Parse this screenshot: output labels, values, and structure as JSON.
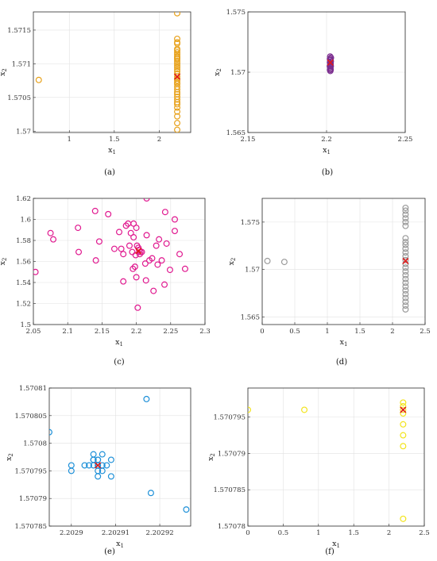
{
  "chart_data": [
    {
      "type": "scatter",
      "panel_label": "(a)",
      "xlabel": "x₁",
      "ylabel": "x₂",
      "xlim": [
        0.6,
        2.35
      ],
      "ylim": [
        1.56998,
        1.57177
      ],
      "xticks": [
        1,
        1.5,
        2
      ],
      "xtick_labels": [
        "1",
        "1.5",
        "2"
      ],
      "yticks": [
        1.57,
        1.5705,
        1.571,
        1.5715
      ],
      "ytick_labels": [
        "1.57",
        "1.5705",
        "1.571",
        "1.5715"
      ],
      "grid": true,
      "series": [
        {
          "color": "#e8a21c",
          "marker": "circle",
          "points": [
            [
              0.66,
              1.57076
            ],
            [
              2.2,
              1.57175
            ],
            [
              2.2,
              1.57137
            ],
            [
              2.2,
              1.57132
            ],
            [
              2.2,
              1.5713
            ],
            [
              2.2,
              1.57122
            ],
            [
              2.2,
              1.5712
            ],
            [
              2.2,
              1.57117
            ],
            [
              2.2,
              1.57114
            ],
            [
              2.2,
              1.57111
            ],
            [
              2.2,
              1.57109
            ],
            [
              2.2,
              1.57107
            ],
            [
              2.2,
              1.57104
            ],
            [
              2.2,
              1.57101
            ],
            [
              2.2,
              1.57098
            ],
            [
              2.2,
              1.57095
            ],
            [
              2.2,
              1.57092
            ],
            [
              2.2,
              1.57089
            ],
            [
              2.2,
              1.57085
            ],
            [
              2.2,
              1.57081
            ],
            [
              2.2,
              1.57078
            ],
            [
              2.2,
              1.57075
            ],
            [
              2.2,
              1.57072
            ],
            [
              2.2,
              1.5707
            ],
            [
              2.2,
              1.57066
            ],
            [
              2.2,
              1.57062
            ],
            [
              2.2,
              1.57058
            ],
            [
              2.2,
              1.57055
            ],
            [
              2.2,
              1.57051
            ],
            [
              2.2,
              1.57047
            ],
            [
              2.2,
              1.57043
            ],
            [
              2.2,
              1.5704
            ],
            [
              2.2,
              1.57035
            ],
            [
              2.2,
              1.57029
            ],
            [
              2.2,
              1.57022
            ],
            [
              2.2,
              1.57012
            ],
            [
              2.2,
              1.57002
            ]
          ]
        }
      ],
      "optimum": [
        2.2,
        1.57081
      ],
      "optimum_marker": "x",
      "optimum_color": "#e01a1a"
    },
    {
      "type": "scatter",
      "panel_label": "(b)",
      "xlabel": "x₁",
      "ylabel": "x₂",
      "xlim": [
        2.15,
        2.25
      ],
      "ylim": [
        1.565,
        1.575
      ],
      "xticks": [
        2.15,
        2.2,
        2.25
      ],
      "xtick_labels": [
        "2.15",
        "2.2",
        "2.25"
      ],
      "yticks": [
        1.565,
        1.57,
        1.575
      ],
      "ytick_labels": [
        "1.565",
        "1.57",
        "1.575"
      ],
      "grid": true,
      "series": [
        {
          "color": "#7b2d8f",
          "marker": "circle",
          "points": [
            [
              2.2028,
              1.5712
            ],
            [
              2.2025,
              1.5711
            ],
            [
              2.2023,
              1.571
            ],
            [
              2.2027,
              1.5709
            ],
            [
              2.2022,
              1.5708
            ],
            [
              2.2026,
              1.5707
            ],
            [
              2.2024,
              1.5706
            ],
            [
              2.2021,
              1.5705
            ],
            [
              2.2023,
              1.5704
            ],
            [
              2.2025,
              1.5703
            ],
            [
              2.2022,
              1.5702
            ],
            [
              2.2024,
              1.5701
            ],
            [
              2.2022,
              1.5711
            ],
            [
              2.2027,
              1.5705
            ],
            [
              2.2026,
              1.5702
            ],
            [
              2.2023,
              1.5713
            ]
          ]
        }
      ],
      "optimum": [
        2.2024,
        1.5708
      ],
      "optimum_marker": "x",
      "optimum_color": "#e01a1a"
    },
    {
      "type": "scatter",
      "panel_label": "(c)",
      "xlabel": "x₁",
      "ylabel": "x₂",
      "xlim": [
        2.05,
        2.3
      ],
      "ylim": [
        1.5,
        1.62
      ],
      "xticks": [
        2.05,
        2.1,
        2.15,
        2.2,
        2.25,
        2.3
      ],
      "xtick_labels": [
        "2.05",
        "2.1",
        "2.15",
        "2.2",
        "2.25",
        "2.3"
      ],
      "yticks": [
        1.5,
        1.52,
        1.54,
        1.56,
        1.58,
        1.6,
        1.62
      ],
      "ytick_labels": [
        "1.5",
        "1.52",
        "1.54",
        "1.56",
        "1.58",
        "1.6",
        "1.62"
      ],
      "grid": true,
      "series": [
        {
          "color": "#e0188f",
          "marker": "circle",
          "points": [
            [
              2.053,
              1.55
            ],
            [
              2.075,
              1.587
            ],
            [
              2.079,
              1.581
            ],
            [
              2.115,
              1.592
            ],
            [
              2.116,
              1.569
            ],
            [
              2.14,
              1.608
            ],
            [
              2.141,
              1.561
            ],
            [
              2.146,
              1.579
            ],
            [
              2.159,
              1.605
            ],
            [
              2.168,
              1.572
            ],
            [
              2.175,
              1.588
            ],
            [
              2.178,
              1.572
            ],
            [
              2.181,
              1.541
            ],
            [
              2.181,
              1.567
            ],
            [
              2.185,
              1.594
            ],
            [
              2.188,
              1.596
            ],
            [
              2.19,
              1.575
            ],
            [
              2.192,
              1.587
            ],
            [
              2.194,
              1.569
            ],
            [
              2.195,
              1.553
            ],
            [
              2.196,
              1.583
            ],
            [
              2.196,
              1.596
            ],
            [
              2.198,
              1.555
            ],
            [
              2.199,
              1.566
            ],
            [
              2.2,
              1.545
            ],
            [
              2.2,
              1.592
            ],
            [
              2.201,
              1.575
            ],
            [
              2.202,
              1.516
            ],
            [
              2.204,
              1.571
            ],
            [
              2.206,
              1.569
            ],
            [
              2.208,
              1.569
            ],
            [
              2.213,
              1.558
            ],
            [
              2.214,
              1.542
            ],
            [
              2.215,
              1.585
            ],
            [
              2.215,
              1.62
            ],
            [
              2.219,
              1.561
            ],
            [
              2.223,
              1.563
            ],
            [
              2.225,
              1.532
            ],
            [
              2.229,
              1.575
            ],
            [
              2.231,
              1.557
            ],
            [
              2.233,
              1.581
            ],
            [
              2.237,
              1.561
            ],
            [
              2.241,
              1.538
            ],
            [
              2.242,
              1.607
            ],
            [
              2.244,
              1.577
            ],
            [
              2.249,
              1.552
            ],
            [
              2.256,
              1.589
            ],
            [
              2.256,
              1.6
            ],
            [
              2.263,
              1.567
            ],
            [
              2.271,
              1.553
            ],
            [
              2.203,
              1.573
            ],
            [
              2.205,
              1.567
            ]
          ]
        }
      ],
      "optimum": [
        2.203,
        1.57
      ],
      "optimum_marker": "x",
      "optimum_color": "#e01a1a"
    },
    {
      "type": "scatter",
      "panel_label": "(d)",
      "xlabel": "x₁",
      "ylabel": "x₂",
      "xlim": [
        0,
        2.5
      ],
      "ylim": [
        1.5642,
        1.5775
      ],
      "xticks": [
        0,
        0.5,
        1,
        1.5,
        2,
        2.5
      ],
      "xtick_labels": [
        "0",
        "0.5",
        "1",
        "1.5",
        "2",
        "2.5"
      ],
      "yticks": [
        1.565,
        1.57,
        1.575
      ],
      "ytick_labels": [
        "1.565",
        "1.57",
        "1.575"
      ],
      "grid": true,
      "series": [
        {
          "color": "#9a9a9a",
          "marker": "circle",
          "points": [
            [
              0.08,
              1.5709
            ],
            [
              0.34,
              1.5708
            ],
            [
              2.2,
              1.5765
            ],
            [
              2.2,
              1.5762
            ],
            [
              2.2,
              1.5758
            ],
            [
              2.2,
              1.5754
            ],
            [
              2.2,
              1.575
            ],
            [
              2.2,
              1.5746
            ],
            [
              2.2,
              1.5733
            ],
            [
              2.2,
              1.5729
            ],
            [
              2.2,
              1.5726
            ],
            [
              2.2,
              1.5722
            ],
            [
              2.2,
              1.5718
            ],
            [
              2.2,
              1.5714
            ],
            [
              2.2,
              1.571
            ],
            [
              2.2,
              1.5706
            ],
            [
              2.2,
              1.5702
            ],
            [
              2.2,
              1.5698
            ],
            [
              2.2,
              1.5694
            ],
            [
              2.2,
              1.569
            ],
            [
              2.2,
              1.5686
            ],
            [
              2.2,
              1.5682
            ],
            [
              2.2,
              1.5678
            ],
            [
              2.2,
              1.5674
            ],
            [
              2.2,
              1.567
            ],
            [
              2.2,
              1.5666
            ],
            [
              2.2,
              1.5662
            ],
            [
              2.2,
              1.5658
            ]
          ]
        }
      ],
      "optimum": [
        2.2,
        1.5709
      ],
      "optimum_marker": "x",
      "optimum_color": "#e01a1a"
    },
    {
      "type": "scatter",
      "panel_label": "(e)",
      "xlabel": "x₁",
      "ylabel": "x₂",
      "xlim": [
        2.202895,
        2.202927
      ],
      "ylim": [
        1.570785,
        1.57081
      ],
      "xticks": [
        2.2029,
        2.20291,
        2.20292
      ],
      "xtick_labels": [
        "2.2029",
        "2.20291",
        "2.20292"
      ],
      "yticks": [
        1.570785,
        1.57079,
        1.570795,
        1.5708,
        1.570805,
        1.57081
      ],
      "ytick_labels": [
        "1.570785",
        "1.57079",
        "1.570795",
        "1.5708",
        "1.570805",
        "1.57081"
      ],
      "grid": true,
      "series": [
        {
          "color": "#1e90d8",
          "marker": "circle",
          "points": [
            [
              2.202895,
              1.570802
            ],
            [
              2.2029,
              1.570796
            ],
            [
              2.2029,
              1.570795
            ],
            [
              2.202903,
              1.570796
            ],
            [
              2.202904,
              1.570796
            ],
            [
              2.202905,
              1.570798
            ],
            [
              2.202905,
              1.570797
            ],
            [
              2.202905,
              1.570796
            ],
            [
              2.202906,
              1.570797
            ],
            [
              2.202906,
              1.570796
            ],
            [
              2.202906,
              1.570795
            ],
            [
              2.202906,
              1.570794
            ],
            [
              2.202907,
              1.570798
            ],
            [
              2.202907,
              1.570796
            ],
            [
              2.202907,
              1.570795
            ],
            [
              2.202908,
              1.570796
            ],
            [
              2.202909,
              1.570797
            ],
            [
              2.202909,
              1.570794
            ],
            [
              2.202917,
              1.570808
            ],
            [
              2.202918,
              1.570791
            ],
            [
              2.202926,
              1.570788
            ],
            [
              2.202905,
              1.570797
            ],
            [
              2.202906,
              1.570797
            ]
          ]
        }
      ],
      "optimum": [
        2.202906,
        1.570796
      ],
      "optimum_marker": "x",
      "optimum_color": "#e01a1a"
    },
    {
      "type": "scatter",
      "panel_label": "(f)",
      "xlabel": "x₁",
      "ylabel": "x₂",
      "xlim": [
        0,
        2.5
      ],
      "ylim": [
        1.57078,
        1.570799
      ],
      "xticks": [
        0,
        0.5,
        1,
        1.5,
        2,
        2.5
      ],
      "xtick_labels": [
        "0",
        "0.5",
        "1",
        "1.5",
        "2",
        "2.5"
      ],
      "yticks": [
        1.57078,
        1.570785,
        1.57079,
        1.570795
      ],
      "ytick_labels": [
        "1.57078",
        "1.570785",
        "1.57079",
        "1.570795"
      ],
      "grid": true,
      "series": [
        {
          "color": "#f2e41c",
          "marker": "circle",
          "points": [
            [
              0.0,
              1.570796
            ],
            [
              0.8,
              1.570796
            ],
            [
              2.2,
              1.570797
            ],
            [
              2.2,
              1.5707965
            ],
            [
              2.2,
              1.570796
            ],
            [
              2.2,
              1.5707955
            ],
            [
              2.2,
              1.570794
            ],
            [
              2.2,
              1.5707925
            ],
            [
              2.2,
              1.570791
            ],
            [
              2.2,
              1.570781
            ]
          ]
        }
      ],
      "optimum": [
        2.2,
        1.570796
      ],
      "optimum_marker": "x",
      "optimum_color": "#e01a1a"
    }
  ]
}
